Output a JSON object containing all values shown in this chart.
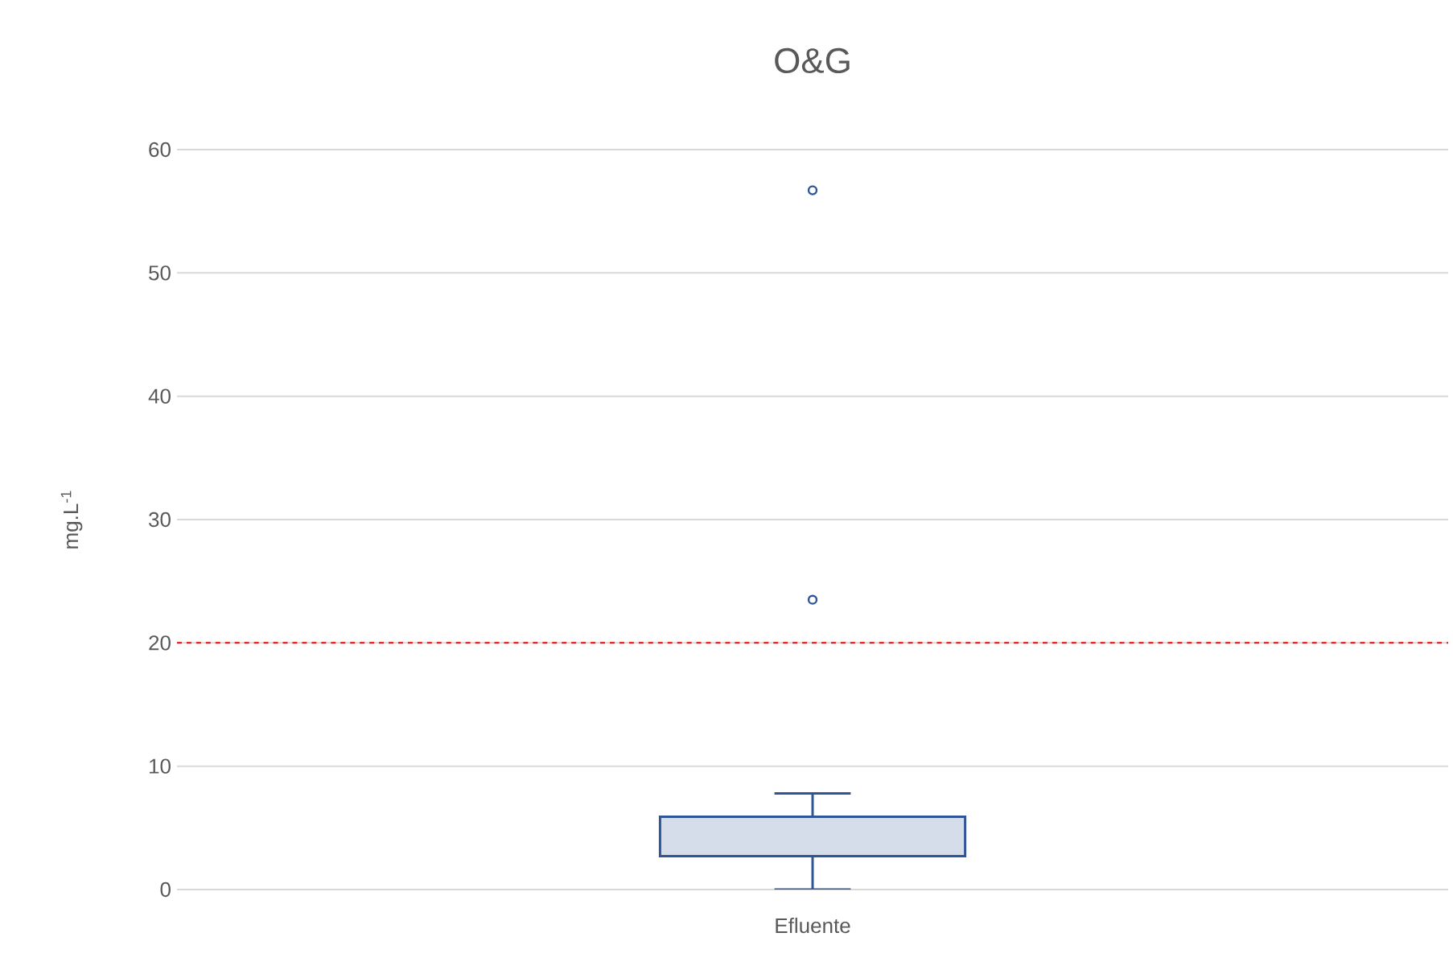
{
  "chart_data": {
    "type": "box",
    "title": "O&G",
    "ylabel": "mg.L$^{-1}$",
    "categories": [
      "Efluente"
    ],
    "series": [
      {
        "color": "#2f5597",
        "boxes": [
          {
            "low": 0,
            "q1": 2.7,
            "median": 2.7,
            "q3": 5.9,
            "high": 7.8,
            "outliers": [
              56.7,
              23.5
            ]
          }
        ]
      }
    ],
    "ylim": [
      0,
      60
    ],
    "yticks": [
      0,
      10,
      20,
      30,
      40,
      50,
      60
    ],
    "grid": "y",
    "ref_lines": [
      {
        "axis": "y",
        "value": 20,
        "color": "#ff0000",
        "line_style": "dashed"
      }
    ]
  }
}
